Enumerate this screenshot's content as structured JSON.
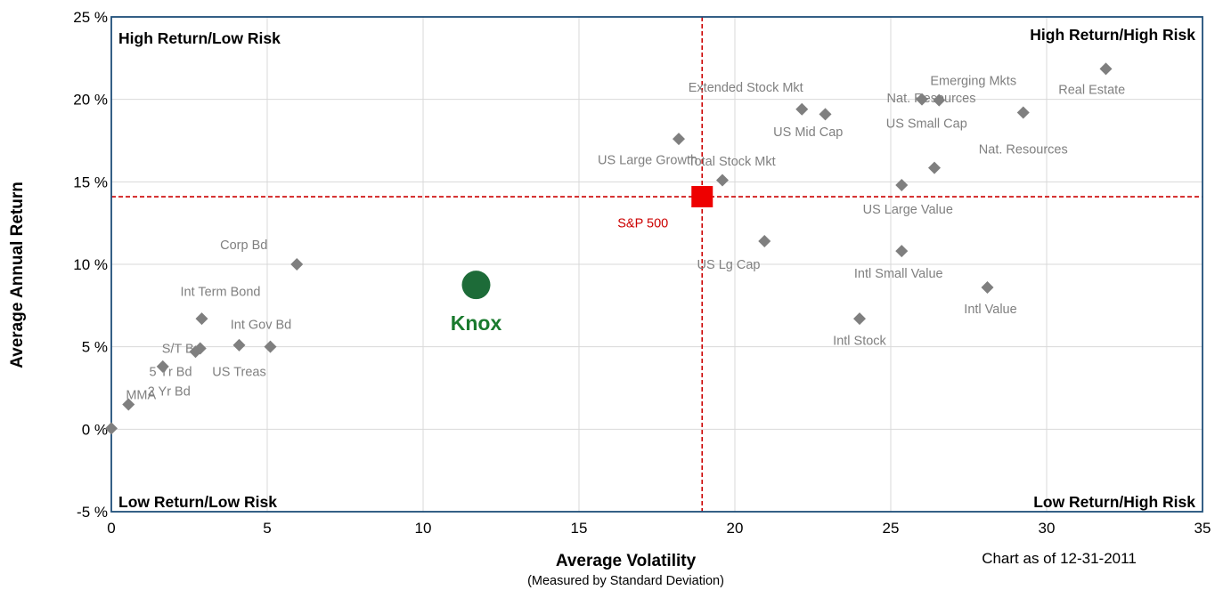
{
  "chart_data": {
    "type": "scatter",
    "title": "",
    "xlabel": "Average Volatility",
    "xlabel_sub": "(Measured by Standard Deviation)",
    "ylabel": "Average Annual Return",
    "as_of": "Chart as of 12-31-2011",
    "xlim": [
      0,
      35
    ],
    "ylim": [
      -5,
      25
    ],
    "x_ticks": [
      "0",
      "5",
      "10",
      "15",
      "20",
      "25",
      "30",
      "35"
    ],
    "y_ticks": [
      "-5 %",
      "0 %",
      "5 %",
      "10 %",
      "15 %",
      "20 %",
      "25 %"
    ],
    "grid": true,
    "quadrant_labels": {
      "top_left": "High Return/Low Risk",
      "top_right": "High Return/High Risk",
      "bottom_left": "Low Return/Low Risk",
      "bottom_right": "Low Return/High Risk"
    },
    "reference_lines": {
      "x": 18.95,
      "y": 14.1,
      "color": "#cc0000"
    },
    "benchmark": {
      "label": "S&P 500",
      "x": 18.95,
      "y": 14.1,
      "color": "#ee0000"
    },
    "highlight": {
      "label": "Knox",
      "x": 11.7,
      "y": 8.75,
      "color": "#1d6b38"
    },
    "points_color": "#7f7f7f",
    "points": [
      {
        "label": "",
        "x": 0.0,
        "y": 0.05,
        "lx": -4.0,
        "ly": -20.4
      },
      {
        "label": "MMA",
        "x": 0.55,
        "y": 1.5,
        "lx": 0.4,
        "ly": 0.6
      },
      {
        "label": "2 Yr Bd",
        "x": 1.65,
        "y": 3.8,
        "lx": 0.2,
        "ly": -1.5
      },
      {
        "label": "5 Yr Bd",
        "x": 2.7,
        "y": 4.7,
        "lx": -0.8,
        "ly": -1.2
      },
      {
        "label": "S/T Bd",
        "x": 2.85,
        "y": 4.9,
        "lx": -0.6,
        "ly": 0.0
      },
      {
        "label": "Int Term Bond",
        "x": 2.9,
        "y": 6.7,
        "lx": 0.6,
        "ly": 1.65
      },
      {
        "label": "US Treas",
        "x": 4.1,
        "y": 5.1,
        "lx": 0.0,
        "ly": -1.6
      },
      {
        "label": "Int Gov Bd",
        "x": 5.1,
        "y": 5.0,
        "lx": -0.3,
        "ly": 1.35
      },
      {
        "label": "Corp Bd",
        "x": 5.95,
        "y": 10.0,
        "lx": -1.7,
        "ly": 1.2
      },
      {
        "label": "US Large Growth",
        "x": 18.2,
        "y": 17.6,
        "lx": -1.0,
        "ly": -1.25
      },
      {
        "label": "Total Stock Mkt",
        "x": 19.6,
        "y": 15.1,
        "lx": 0.3,
        "ly": 1.15
      },
      {
        "label": "US Lg Cap",
        "x": 20.95,
        "y": 11.4,
        "lx": -1.15,
        "ly": -1.4
      },
      {
        "label": "Extended Stock Mkt",
        "x": 22.15,
        "y": 19.4,
        "lx": -1.8,
        "ly": 1.35
      },
      {
        "label": "US Mid Cap",
        "x": 22.9,
        "y": 19.1,
        "lx": -0.55,
        "ly": -1.05
      },
      {
        "label": "Intl Stock",
        "x": 24.0,
        "y": 6.7,
        "lx": 0.0,
        "ly": -1.3
      },
      {
        "label": "US Large Value",
        "x": 25.35,
        "y": 14.8,
        "lx": 0.2,
        "ly": -1.45
      },
      {
        "label": "Intl Small Value",
        "x": 25.35,
        "y": 10.8,
        "lx": -0.1,
        "ly": -1.35
      },
      {
        "label": "Nat. Resources",
        "x": 26.0,
        "y": 20.0,
        "lx": 0.3,
        "ly": 0.1
      },
      {
        "label": "US Small Cap",
        "x": 26.55,
        "y": 19.95,
        "lx": -0.4,
        "ly": -1.4
      },
      {
        "label": "Nat. Resources",
        "x": 26.4,
        "y": 15.85,
        "lx": 2.85,
        "ly": 1.15
      },
      {
        "label": "Intl Value",
        "x": 28.1,
        "y": 8.6,
        "lx": 0.1,
        "ly": -1.3
      },
      {
        "label": "Emerging Mkts",
        "x": 29.25,
        "y": 19.2,
        "lx": -1.6,
        "ly": 1.95
      },
      {
        "label": "Real Estate",
        "x": 31.9,
        "y": 21.85,
        "lx": -0.45,
        "ly": -1.25
      }
    ]
  }
}
